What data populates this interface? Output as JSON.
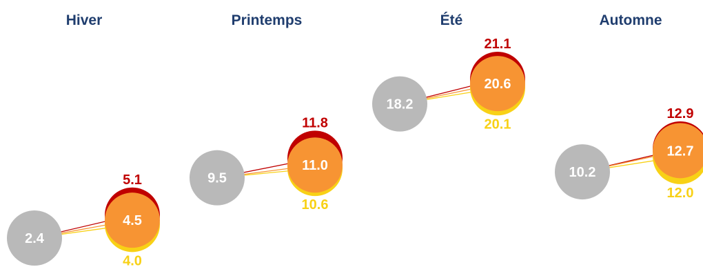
{
  "chart_data": {
    "type": "scatter",
    "title": "",
    "xlabel": "",
    "ylabel": "",
    "colors": {
      "baseline": "#b9b9b9",
      "high": "#c00000",
      "mid": "#f79433",
      "low": "#f8d116",
      "title": "#1f3d6e",
      "label_on_circle": "#ffffff"
    },
    "panels": [
      {
        "title": "Hiver",
        "baseline": 2.4,
        "mid": 4.5,
        "high": 5.1,
        "low": 4.0,
        "labels": {
          "baseline": "2.4",
          "mid": "4.5",
          "high": "5.1",
          "low": "4.0"
        }
      },
      {
        "title": "Printemps",
        "baseline": 9.5,
        "mid": 11.0,
        "high": 11.8,
        "low": 10.6,
        "labels": {
          "baseline": "9.5",
          "mid": "11.0",
          "high": "11.8",
          "low": "10.6"
        }
      },
      {
        "title": "Été",
        "baseline": 18.2,
        "mid": 20.6,
        "high": 21.1,
        "low": 20.1,
        "labels": {
          "baseline": "18.2",
          "mid": "20.6",
          "high": "21.1",
          "low": "20.1"
        }
      },
      {
        "title": "Automne",
        "baseline": 10.2,
        "mid": 12.7,
        "high": 12.9,
        "low": 12.0,
        "labels": {
          "baseline": "10.2",
          "mid": "12.7",
          "high": "12.9",
          "low": "12.0"
        }
      }
    ]
  }
}
